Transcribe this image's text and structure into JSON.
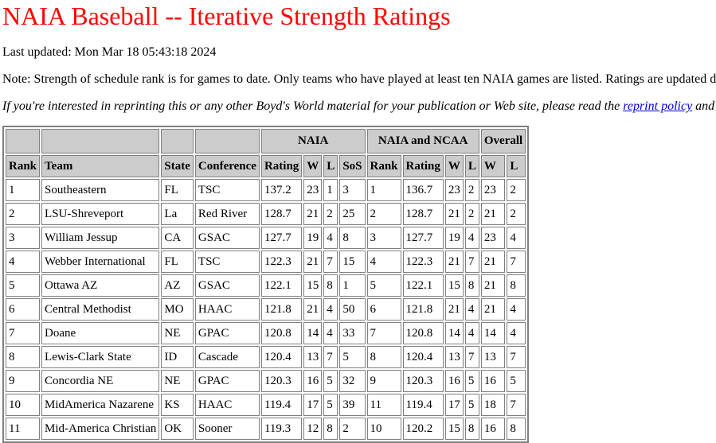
{
  "title": "NAIA Baseball -- Iterative Strength Ratings",
  "updated": "Last updated: Mon Mar 18 05:43:18 2024",
  "note": "Note: Strength of schedule rank is for games to date. Only teams who have played at least ten NAIA games are listed. Ratings are updated d",
  "reprint": {
    "before": "If you're interested in reprinting this or any other Boyd's World material for your publication or Web site, please read the ",
    "link": "reprint policy",
    "after": " and"
  },
  "table": {
    "group_headers": [
      "NAIA",
      "NAIA and NCAA",
      "Overall"
    ],
    "headers": [
      "Rank",
      "Team",
      "State",
      "Conference",
      "Rating",
      "W",
      "L",
      "SoS",
      "Rank",
      "Rating",
      "W",
      "L",
      "W",
      "L"
    ],
    "rows": [
      [
        "1",
        "Southeastern",
        "FL",
        "TSC",
        "137.2",
        "23",
        "1",
        "3",
        "1",
        "136.7",
        "23",
        "2",
        "23",
        "2"
      ],
      [
        "2",
        "LSU-Shreveport",
        "La",
        "Red River",
        "128.7",
        "21",
        "2",
        "25",
        "2",
        "128.7",
        "21",
        "2",
        "21",
        "2"
      ],
      [
        "3",
        "William Jessup",
        "CA",
        "GSAC",
        "127.7",
        "19",
        "4",
        "8",
        "3",
        "127.7",
        "19",
        "4",
        "23",
        "4"
      ],
      [
        "4",
        "Webber International",
        "FL",
        "TSC",
        "122.3",
        "21",
        "7",
        "15",
        "4",
        "122.3",
        "21",
        "7",
        "21",
        "7"
      ],
      [
        "5",
        "Ottawa AZ",
        "AZ",
        "GSAC",
        "122.1",
        "15",
        "8",
        "1",
        "5",
        "122.1",
        "15",
        "8",
        "21",
        "8"
      ],
      [
        "6",
        "Central Methodist",
        "MO",
        "HAAC",
        "121.8",
        "21",
        "4",
        "50",
        "6",
        "121.8",
        "21",
        "4",
        "21",
        "4"
      ],
      [
        "7",
        "Doane",
        "NE",
        "GPAC",
        "120.8",
        "14",
        "4",
        "33",
        "7",
        "120.8",
        "14",
        "4",
        "14",
        "4"
      ],
      [
        "8",
        "Lewis-Clark State",
        "ID",
        "Cascade",
        "120.4",
        "13",
        "7",
        "5",
        "8",
        "120.4",
        "13",
        "7",
        "13",
        "7"
      ],
      [
        "9",
        "Concordia NE",
        "NE",
        "GPAC",
        "120.3",
        "16",
        "5",
        "32",
        "9",
        "120.3",
        "16",
        "5",
        "16",
        "5"
      ],
      [
        "10",
        "MidAmerica Nazarene",
        "KS",
        "HAAC",
        "119.4",
        "17",
        "5",
        "39",
        "11",
        "119.4",
        "17",
        "5",
        "18",
        "7"
      ],
      [
        "11",
        "Mid-America Christian",
        "OK",
        "Sooner",
        "119.3",
        "12",
        "8",
        "2",
        "10",
        "120.2",
        "15",
        "8",
        "16",
        "8"
      ]
    ]
  }
}
